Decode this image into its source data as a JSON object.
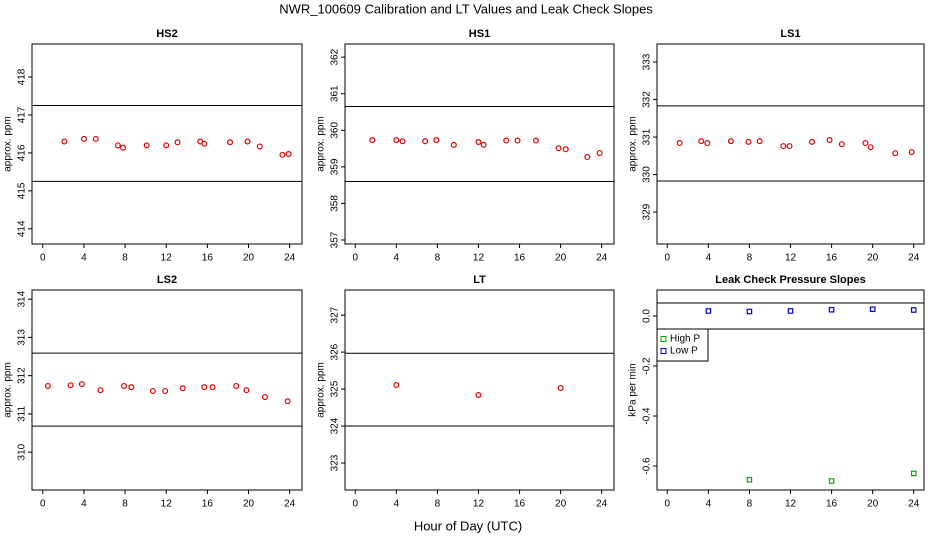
{
  "title": "NWR_100609  Calibration and LT Values and Leak Check Slopes",
  "xlabel": "Hour of Day (UTC)",
  "chart_data": [
    {
      "type": "scatter",
      "title": "HS2",
      "ylabel": "approx. ppm",
      "xlim": [
        -1.05,
        25.2
      ],
      "xticks": [
        0,
        4,
        8,
        12,
        16,
        20,
        24
      ],
      "ylim": [
        413.6,
        418.87
      ],
      "yticks": [
        414,
        415,
        416,
        417,
        418
      ],
      "hlines": [
        417.25,
        415.25
      ],
      "series": [
        {
          "color": "#dd0000",
          "x": [
            2.1,
            4,
            5.15,
            7.3,
            7.8,
            10.1,
            12,
            13.1,
            15.3,
            15.7,
            18.2,
            19.9,
            21.1,
            23.3,
            23.9
          ],
          "values": [
            416.3,
            416.37,
            416.37,
            416.2,
            416.14,
            416.2,
            416.2,
            416.28,
            416.3,
            416.24,
            416.28,
            416.3,
            416.17,
            415.95,
            415.97
          ]
        }
      ]
    },
    {
      "type": "scatter",
      "title": "HS1",
      "ylabel": "approx. ppm",
      "xlim": [
        -1,
        25.2
      ],
      "xticks": [
        0,
        4,
        8,
        12,
        16,
        20,
        24
      ],
      "ylim": [
        356.89,
        362.36
      ],
      "yticks": [
        357,
        358,
        359,
        360,
        361,
        362
      ],
      "hlines": [
        360.65,
        358.6
      ],
      "series": [
        {
          "color": "#dd0000",
          "x": [
            1.65,
            4,
            4.6,
            6.8,
            7.9,
            9.6,
            12,
            12.5,
            14.7,
            15.8,
            17.6,
            19.8,
            20.5,
            22.6,
            23.8
          ],
          "values": [
            359.73,
            359.73,
            359.7,
            359.7,
            359.73,
            359.6,
            359.68,
            359.6,
            359.72,
            359.72,
            359.72,
            359.51,
            359.48,
            359.27,
            359.38
          ]
        }
      ]
    },
    {
      "type": "scatter",
      "title": "LS1",
      "ylabel": "approx. ppm",
      "xlim": [
        -1,
        25
      ],
      "xticks": [
        0,
        4,
        8,
        12,
        16,
        20,
        24
      ],
      "ylim": [
        328.15,
        333.48
      ],
      "yticks": [
        329,
        330,
        331,
        332,
        333
      ],
      "hlines": [
        331.83,
        329.83
      ],
      "series": [
        {
          "color": "#dd0000",
          "x": [
            1.2,
            3.3,
            3.9,
            6.2,
            7.9,
            9,
            11.3,
            11.9,
            14.1,
            15.8,
            17,
            19.3,
            19.8,
            22.2,
            23.8
          ],
          "values": [
            330.84,
            330.89,
            330.84,
            330.89,
            330.87,
            330.89,
            330.76,
            330.76,
            330.87,
            330.92,
            330.81,
            330.84,
            330.73,
            330.57,
            330.6
          ]
        }
      ]
    },
    {
      "type": "scatter",
      "title": "LS2",
      "ylabel": "approx. ppm",
      "xlim": [
        -1.05,
        25.2
      ],
      "xticks": [
        0,
        4,
        8,
        12,
        16,
        20,
        24
      ],
      "ylim": [
        309.01,
        314.24
      ],
      "yticks": [
        310,
        311,
        312,
        313,
        314
      ],
      "hlines": [
        312.59,
        310.68
      ],
      "series": [
        {
          "color": "#dd0000",
          "x": [
            0.5,
            2.7,
            3.8,
            5.6,
            7.9,
            8.6,
            10.7,
            11.9,
            13.6,
            15.7,
            16.5,
            18.8,
            19.8,
            21.6,
            23.8
          ],
          "values": [
            311.73,
            311.75,
            311.78,
            311.62,
            311.73,
            311.7,
            311.6,
            311.6,
            311.67,
            311.7,
            311.7,
            311.73,
            311.62,
            311.44,
            311.33
          ]
        }
      ]
    },
    {
      "type": "scatter",
      "title": "LT",
      "ylabel": "approx. ppm",
      "xlim": [
        -1,
        25.2
      ],
      "xticks": [
        0,
        4,
        8,
        12,
        16,
        20,
        24
      ],
      "ylim": [
        322.27,
        327.68
      ],
      "yticks": [
        323,
        324,
        325,
        326,
        327
      ],
      "hlines": [
        325.97,
        324
      ],
      "series": [
        {
          "color": "#dd0000",
          "x": [
            4,
            12,
            20
          ],
          "values": [
            325.11,
            324.84,
            325.03
          ]
        }
      ]
    },
    {
      "type": "scatter",
      "title": "Leak Check Pressure Slopes",
      "ylabel": "kPa per min",
      "xlim": [
        -1,
        25
      ],
      "xticks": [
        0,
        4,
        8,
        12,
        16,
        20,
        24
      ],
      "ylim": [
        -0.696,
        0.104
      ],
      "yticks": [
        {
          "value": 0,
          "label": "0.0"
        },
        -0.2,
        -0.4,
        -0.6
      ],
      "hlines": [
        0.052,
        -0.052
      ],
      "legend": "topleft",
      "marker": "square",
      "series": [
        {
          "name": "High P",
          "color": "#00aa00",
          "x": [
            8,
            16,
            24
          ],
          "values": [
            -0.655,
            -0.66,
            -0.63
          ]
        },
        {
          "name": "Low P",
          "color": "#0000cc",
          "x": [
            4,
            8,
            12,
            16,
            20,
            24
          ],
          "values": [
            0.02,
            0.018,
            0.02,
            0.025,
            0.027,
            0.024
          ]
        }
      ]
    }
  ]
}
